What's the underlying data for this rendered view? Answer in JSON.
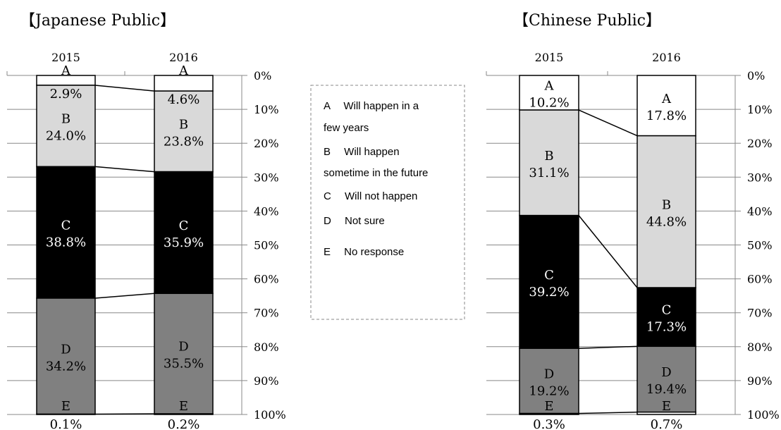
{
  "chart_data": [
    {
      "type": "bar",
      "stacked": true,
      "percent": true,
      "title": "【Japanese Public】",
      "categories": [
        "2015",
        "2016"
      ],
      "series": [
        {
          "name": "A",
          "values": [
            2.9,
            4.6
          ],
          "color": "#ffffff",
          "label_color": "#000000"
        },
        {
          "name": "B",
          "values": [
            24.0,
            23.8
          ],
          "color": "#d9d9d9",
          "label_color": "#000000"
        },
        {
          "name": "C",
          "values": [
            38.8,
            35.9
          ],
          "color": "#000000",
          "label_color": "#ffffff"
        },
        {
          "name": "D",
          "values": [
            34.2,
            35.5
          ],
          "color": "#808080",
          "label_color": "#000000"
        },
        {
          "name": "E",
          "values": [
            0.1,
            0.2
          ],
          "color": "#ffffff",
          "label_color": "#000000"
        }
      ],
      "data_labels": [
        [
          "A",
          "B",
          "C",
          "D",
          "E"
        ],
        [
          "2.9%",
          "24.0%",
          "38.8%",
          "34.2%",
          "0.1%"
        ],
        [
          "4.6%",
          "23.8%",
          "35.9%",
          "35.5%",
          "0.2%"
        ]
      ],
      "y_ticks": [
        "0%",
        "10%",
        "20%",
        "30%",
        "40%",
        "50%",
        "60%",
        "70%",
        "80%",
        "90%",
        "100%"
      ],
      "ylim": [
        0,
        100
      ],
      "y_axis_position": "right",
      "y_inverted": true,
      "grid": true
    },
    {
      "type": "bar",
      "stacked": true,
      "percent": true,
      "title": "【Chinese Public】",
      "categories": [
        "2015",
        "2016"
      ],
      "series": [
        {
          "name": "A",
          "values": [
            10.2,
            17.8
          ],
          "color": "#ffffff",
          "label_color": "#000000"
        },
        {
          "name": "B",
          "values": [
            31.1,
            44.8
          ],
          "color": "#d9d9d9",
          "label_color": "#000000"
        },
        {
          "name": "C",
          "values": [
            39.2,
            17.3
          ],
          "color": "#000000",
          "label_color": "#ffffff"
        },
        {
          "name": "D",
          "values": [
            19.2,
            19.4
          ],
          "color": "#808080",
          "label_color": "#000000"
        },
        {
          "name": "E",
          "values": [
            0.3,
            0.7
          ],
          "color": "#ffffff",
          "label_color": "#000000"
        }
      ],
      "data_labels": [
        [
          "A",
          "B",
          "C",
          "D",
          "E"
        ],
        [
          "10.2%",
          "31.1%",
          "39.2%",
          "19.2%",
          "0.3%"
        ],
        [
          "17.8%",
          "44.8%",
          "17.3%",
          "19.4%",
          "0.7%"
        ]
      ],
      "y_ticks": [
        "0%",
        "10%",
        "20%",
        "30%",
        "40%",
        "50%",
        "60%",
        "70%",
        "80%",
        "90%",
        "100%"
      ],
      "ylim": [
        0,
        100
      ],
      "y_axis_position": "right",
      "y_inverted": true,
      "grid": true
    }
  ],
  "legend": {
    "position": "center",
    "lines": [
      "A　 Will happen in a",
      "few years",
      "B　 Will happen",
      "sometime in the future",
      "C　 Will not happen",
      "D　 Not sure",
      "E　 No response"
    ]
  }
}
